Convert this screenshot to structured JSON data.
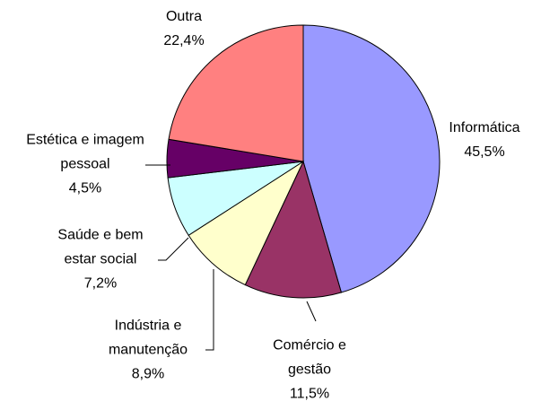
{
  "chart_data": {
    "type": "pie",
    "categories": [
      "Informática",
      "Comércio e gestão",
      "Indústria e manutenção",
      "Saúde e bem estar social",
      "Estética e imagem pessoal",
      "Outra"
    ],
    "values": [
      45.5,
      11.5,
      8.9,
      7.2,
      4.5,
      22.4
    ],
    "value_labels": [
      "45,5%",
      "11,5%",
      "8,9%",
      "7,2%",
      "4,5%",
      "22,4%"
    ],
    "colors": [
      "#9999ff",
      "#993366",
      "#ffffcc",
      "#ccffff",
      "#660066",
      "#ff8080"
    ]
  }
}
